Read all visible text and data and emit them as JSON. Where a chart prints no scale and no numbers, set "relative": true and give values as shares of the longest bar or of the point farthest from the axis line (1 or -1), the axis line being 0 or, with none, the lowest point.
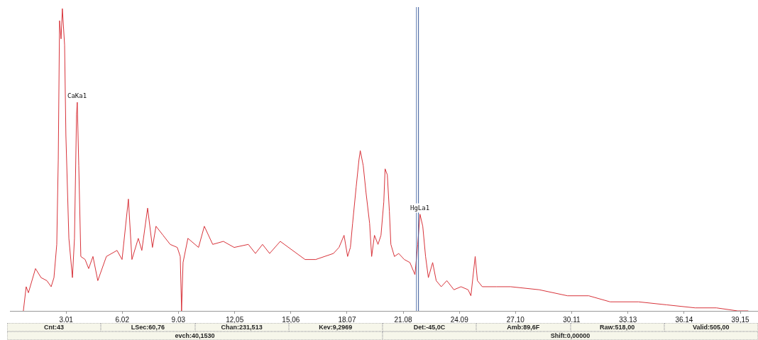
{
  "chart_data": {
    "type": "line",
    "relative": true,
    "x": [
      0.72,
      0.87,
      0.99,
      1.37,
      1.67,
      1.98,
      2.21,
      2.36,
      2.51,
      2.59,
      2.66,
      2.74,
      2.81,
      2.93,
      3.0,
      3.16,
      3.35,
      3.46,
      3.57,
      3.61,
      3.69,
      3.8,
      4.03,
      4.22,
      4.45,
      4.71,
      5.17,
      5.74,
      6.01,
      6.35,
      6.54,
      6.88,
      7.07,
      7.38,
      7.64,
      7.83,
      8.21,
      8.59,
      8.97,
      9.13,
      9.2,
      9.28,
      9.54,
      10.11,
      10.42,
      10.87,
      11.44,
      12.02,
      12.78,
      13.16,
      13.54,
      13.92,
      14.49,
      15.82,
      16.39,
      17.34,
      17.64,
      17.91,
      18.1,
      18.25,
      18.37,
      18.56,
      18.71,
      18.78,
      18.94,
      19.09,
      19.28,
      19.39,
      19.54,
      19.73,
      19.89,
      20.04,
      20.11,
      20.23,
      20.34,
      20.42,
      20.61,
      20.84,
      21.14,
      21.44,
      21.71,
      21.86,
      21.98,
      22.13,
      22.28,
      22.43,
      22.66,
      22.85,
      23.12,
      23.42,
      23.8,
      24.18,
      24.56,
      24.71,
      24.94,
      25.06,
      25.32,
      26.08,
      26.84,
      28.37,
      29.89,
      31.03,
      32.17,
      33.69,
      35.21,
      36.73,
      37.87,
      39.01,
      39.58
    ],
    "series": [
      {
        "color": "#d8333a",
        "values": [
          0.0,
          0.08,
          0.06,
          0.14,
          0.11,
          0.1,
          0.08,
          0.11,
          0.22,
          0.5,
          0.96,
          0.9,
          1.0,
          0.88,
          0.58,
          0.24,
          0.11,
          0.24,
          0.65,
          0.69,
          0.48,
          0.18,
          0.17,
          0.14,
          0.18,
          0.1,
          0.18,
          0.2,
          0.17,
          0.37,
          0.17,
          0.24,
          0.2,
          0.34,
          0.21,
          0.28,
          0.25,
          0.22,
          0.21,
          0.18,
          0.0,
          0.16,
          0.24,
          0.21,
          0.28,
          0.22,
          0.23,
          0.21,
          0.22,
          0.19,
          0.22,
          0.19,
          0.23,
          0.17,
          0.17,
          0.19,
          0.21,
          0.25,
          0.18,
          0.21,
          0.29,
          0.41,
          0.5,
          0.53,
          0.48,
          0.39,
          0.29,
          0.18,
          0.25,
          0.22,
          0.25,
          0.36,
          0.47,
          0.45,
          0.33,
          0.22,
          0.18,
          0.19,
          0.17,
          0.16,
          0.12,
          0.22,
          0.32,
          0.28,
          0.18,
          0.11,
          0.16,
          0.1,
          0.08,
          0.1,
          0.07,
          0.08,
          0.07,
          0.05,
          0.18,
          0.1,
          0.08,
          0.08,
          0.08,
          0.07,
          0.05,
          0.05,
          0.03,
          0.03,
          0.02,
          0.01,
          0.01,
          0.0,
          0.0
        ]
      }
    ],
    "xlim": [
      0,
      40.1
    ],
    "xticks": [
      {
        "value": 3.01,
        "label": "3.01"
      },
      {
        "value": 6.02,
        "label": "6.02"
      },
      {
        "value": 9.03,
        "label": "9.03"
      },
      {
        "value": 12.05,
        "label": "12,05"
      },
      {
        "value": 15.06,
        "label": "15,06"
      },
      {
        "value": 18.07,
        "label": "18.07"
      },
      {
        "value": 21.08,
        "label": "21.08"
      },
      {
        "value": 24.09,
        "label": "24.09"
      },
      {
        "value": 27.1,
        "label": "27.10"
      },
      {
        "value": 30.11,
        "label": "30.11"
      },
      {
        "value": 33.13,
        "label": "33.13"
      },
      {
        "value": 36.14,
        "label": "36.14"
      },
      {
        "value": 39.15,
        "label": "39,15"
      }
    ],
    "ref_lines": [
      {
        "axis": "x",
        "value": 21.79,
        "color": "#5a78b0"
      },
      {
        "axis": "x",
        "value": 21.9,
        "color": "#3a5a9a"
      }
    ],
    "annotations": [
      {
        "text": "CaKa1",
        "x": 3.61,
        "y": 0.69
      },
      {
        "text": "HgLa1",
        "x": 21.98,
        "y": 0.32
      },
      "Cnt:43",
      "LSec:60,76",
      "Chan:231,513",
      "Kev:9,2969",
      "Det:-45,0C",
      "Amb:89,6F",
      "Raw:518,00",
      "Valid:505,00",
      "evch:40,1530",
      "Shift:0,00000"
    ]
  }
}
